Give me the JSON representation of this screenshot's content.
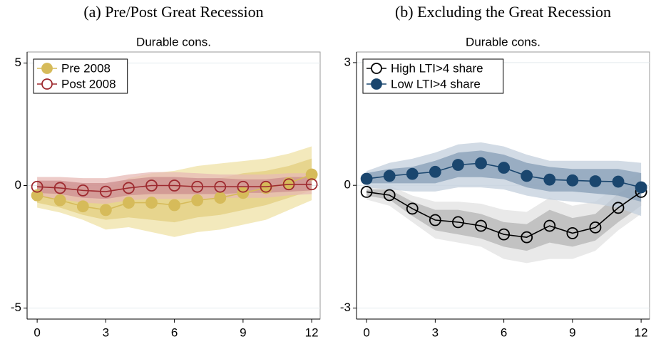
{
  "chart_data": [
    {
      "type": "line",
      "caption": "(a) Pre/Post Great Recession",
      "title": "Durable cons.",
      "x": [
        0,
        1,
        2,
        3,
        4,
        5,
        6,
        7,
        8,
        9,
        10,
        11,
        12
      ],
      "xlim": [
        -0.44,
        12.37
      ],
      "xticks": [
        0,
        3,
        6,
        9,
        12
      ],
      "ylim": [
        -5.45,
        5.45
      ],
      "yticks": [
        -5,
        0,
        5
      ],
      "grid": true,
      "legend": "top-left",
      "series": [
        {
          "name": "Pre 2008",
          "color": "#d6bb5a",
          "marker": "filled",
          "values": [
            -0.4,
            -0.6,
            -0.85,
            -1.0,
            -0.7,
            -0.7,
            -0.8,
            -0.6,
            -0.5,
            -0.3,
            -0.1,
            0.1,
            0.45
          ],
          "bands": [
            {
              "color": "#efe1a6",
              "lower": [
                -0.9,
                -1.1,
                -1.4,
                -1.8,
                -1.7,
                -1.9,
                -2.1,
                -1.9,
                -1.8,
                -1.6,
                -1.4,
                -1.0,
                -0.6
              ],
              "upper": [
                0.1,
                0.0,
                -0.1,
                -0.2,
                0.3,
                0.5,
                0.6,
                0.8,
                0.9,
                1.0,
                1.1,
                1.3,
                1.6
              ]
            },
            {
              "color": "#e3cd7f",
              "lower": [
                -0.7,
                -0.9,
                -1.2,
                -1.4,
                -1.3,
                -1.4,
                -1.5,
                -1.3,
                -1.2,
                -1.0,
                -0.8,
                -0.5,
                -0.2
              ],
              "upper": [
                -0.1,
                -0.3,
                -0.5,
                -0.6,
                -0.2,
                -0.1,
                0,
                0.2,
                0.3,
                0.5,
                0.6,
                0.8,
                1.1
              ]
            }
          ]
        },
        {
          "name": "Post 2008",
          "color": "#9e2a2f",
          "marker": "hollow",
          "values": [
            -0.05,
            -0.1,
            -0.2,
            -0.25,
            -0.1,
            0,
            0,
            -0.05,
            -0.05,
            -0.05,
            -0.05,
            0.05,
            0.05
          ],
          "bands": [
            {
              "color": "#e7b9b6",
              "lower": [
                -0.45,
                -0.55,
                -0.7,
                -0.75,
                -0.6,
                -0.55,
                -0.55,
                -0.55,
                -0.5,
                -0.5,
                -0.5,
                -0.4,
                -0.35
              ],
              "upper": [
                0.35,
                0.35,
                0.3,
                0.3,
                0.45,
                0.55,
                0.55,
                0.5,
                0.45,
                0.45,
                0.45,
                0.5,
                0.5
              ]
            },
            {
              "color": "#cc8d8e",
              "lower": [
                -0.3,
                -0.35,
                -0.5,
                -0.55,
                -0.4,
                -0.35,
                -0.35,
                -0.35,
                -0.35,
                -0.3,
                -0.3,
                -0.25,
                -0.2
              ],
              "upper": [
                0.2,
                0.2,
                0.1,
                0.1,
                0.25,
                0.35,
                0.35,
                0.3,
                0.3,
                0.25,
                0.25,
                0.35,
                0.35
              ]
            }
          ]
        }
      ]
    },
    {
      "type": "line",
      "caption": "(b) Excluding the Great Recession",
      "title": "Durable cons.",
      "x": [
        0,
        1,
        2,
        3,
        4,
        5,
        6,
        7,
        8,
        9,
        10,
        11,
        12
      ],
      "xlim": [
        -0.44,
        12.37
      ],
      "xticks": [
        0,
        3,
        6,
        9,
        12
      ],
      "ylim": [
        -3.27,
        3.26
      ],
      "yticks": [
        -3,
        0,
        3
      ],
      "grid": true,
      "legend": "top-left",
      "series": [
        {
          "name": "High LTI>4 share",
          "color": "#000000",
          "marker": "hollow",
          "values": [
            -0.16,
            -0.24,
            -0.57,
            -0.85,
            -0.9,
            -0.99,
            -1.2,
            -1.27,
            -0.99,
            -1.17,
            -1.03,
            -0.55,
            -0.16
          ],
          "bands": [
            {
              "color": "#e2e2e2",
              "lower": [
                -0.35,
                -0.5,
                -0.9,
                -1.3,
                -1.4,
                -1.5,
                -1.8,
                -1.9,
                -1.8,
                -1.8,
                -1.6,
                -1.1,
                -0.7
              ],
              "upper": [
                0.0,
                0.0,
                -0.25,
                -0.4,
                -0.4,
                -0.45,
                -0.6,
                -0.65,
                -0.3,
                -0.5,
                -0.4,
                0.0,
                0.3
              ]
            },
            {
              "color": "#b4b4b4",
              "lower": [
                -0.25,
                -0.35,
                -0.75,
                -1.1,
                -1.2,
                -1.3,
                -1.5,
                -1.6,
                -1.4,
                -1.5,
                -1.35,
                -0.9,
                -0.5
              ],
              "upper": [
                -0.1,
                -0.1,
                -0.4,
                -0.6,
                -0.6,
                -0.7,
                -0.9,
                -0.95,
                -0.6,
                -0.8,
                -0.7,
                -0.2,
                0.1
              ]
            }
          ]
        },
        {
          "name": "Low LTI>4 share",
          "color": "#1a466e",
          "marker": "filled",
          "values": [
            0.16,
            0.23,
            0.28,
            0.33,
            0.5,
            0.54,
            0.43,
            0.23,
            0.14,
            0.12,
            0.1,
            0.09,
            -0.05
          ],
          "bands": [
            {
              "color": "#c3cfdc",
              "lower": [
                -0.05,
                -0.1,
                -0.15,
                -0.15,
                -0.05,
                -0.05,
                -0.1,
                -0.25,
                -0.35,
                -0.4,
                -0.45,
                -0.55,
                -0.75
              ],
              "upper": [
                0.35,
                0.55,
                0.65,
                0.8,
                1.0,
                1.05,
                0.95,
                0.75,
                0.6,
                0.6,
                0.6,
                0.6,
                0.55
              ]
            },
            {
              "color": "#869db6",
              "lower": [
                0.05,
                0.05,
                0.05,
                0.05,
                0.2,
                0.2,
                0.15,
                -0.05,
                -0.15,
                -0.15,
                -0.2,
                -0.25,
                -0.4
              ],
              "upper": [
                0.3,
                0.4,
                0.45,
                0.6,
                0.8,
                0.85,
                0.75,
                0.55,
                0.45,
                0.4,
                0.4,
                0.4,
                0.3
              ]
            }
          ]
        }
      ]
    }
  ]
}
